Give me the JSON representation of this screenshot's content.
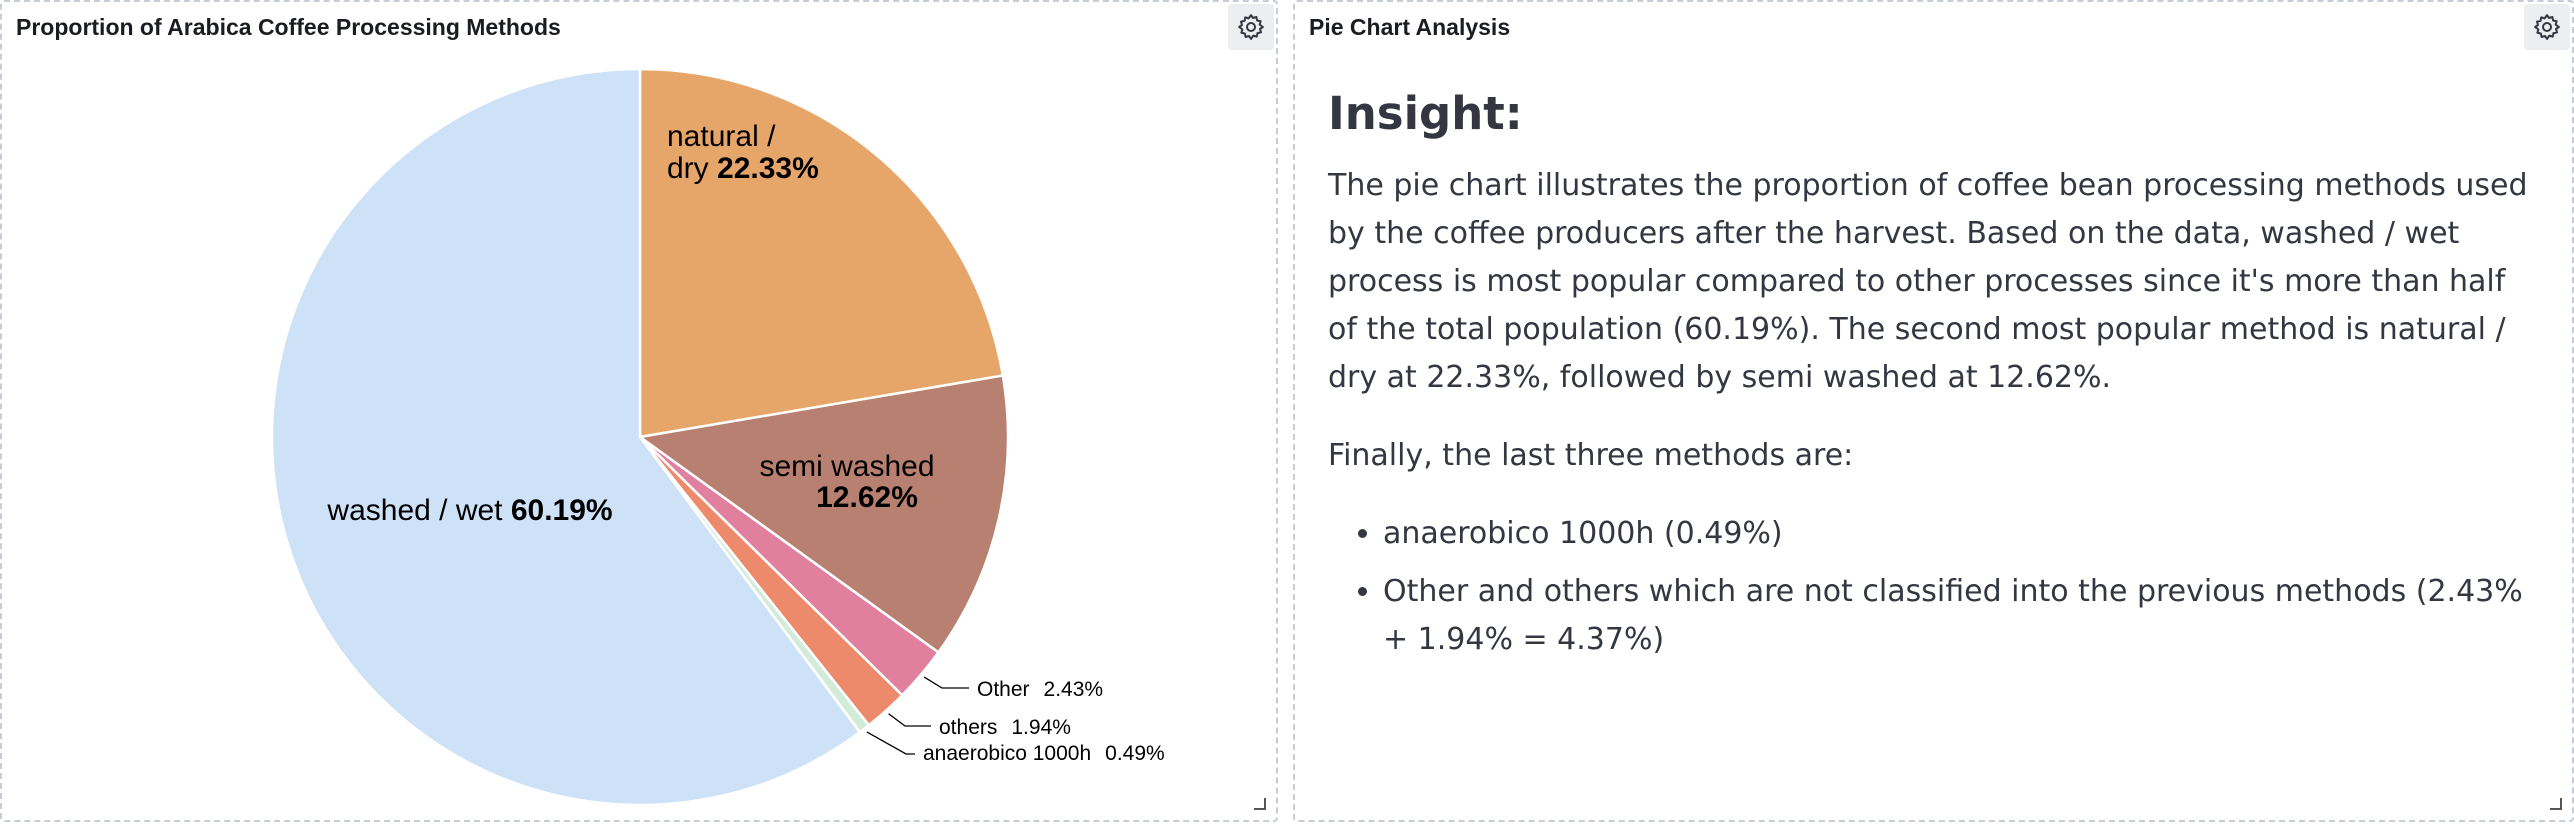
{
  "chart_panel": {
    "title": "Proportion of Arabica Coffee Processing Methods",
    "gear_icon": "gear-icon"
  },
  "text_panel": {
    "title": "Pie Chart Analysis",
    "gear_icon": "gear-icon",
    "heading": "Insight:",
    "paragraph1": "The pie chart illustrates the proportion of coffee bean processing methods used by the coffee producers after the harvest. Based on the data, washed / wet process is most popular compared to other processes since it's more than half of the total population (60.19%). The second most popular method is natural / dry at 22.33%, followed by semi washed at 12.62%.",
    "paragraph2": "Finally, the last three methods are:",
    "bullets": [
      "anaerobico 1000h (0.49%)",
      "Other and others which are not classified into the previous methods (2.43% + 1.94% = 4.37%)"
    ]
  },
  "chart_data": {
    "type": "pie",
    "title": "Proportion of Arabica Coffee Processing Methods",
    "slices": [
      {
        "label": "natural / dry",
        "value": 22.33,
        "display": "22.33%",
        "color": "#e7a669"
      },
      {
        "label": "semi washed",
        "value": 12.62,
        "display": "12.62%",
        "color": "#b88070"
      },
      {
        "label": "Other",
        "value": 2.43,
        "display": "2.43%",
        "color": "#e07f9e"
      },
      {
        "label": "others",
        "value": 1.94,
        "display": "1.94%",
        "color": "#ee8a6c"
      },
      {
        "label": "anaerobico 1000h",
        "value": 0.49,
        "display": "0.49%",
        "color": "#d3ecd9"
      },
      {
        "label": "washed / wet",
        "value": 60.19,
        "display": "60.19%",
        "color": "#cde1f7"
      }
    ]
  }
}
